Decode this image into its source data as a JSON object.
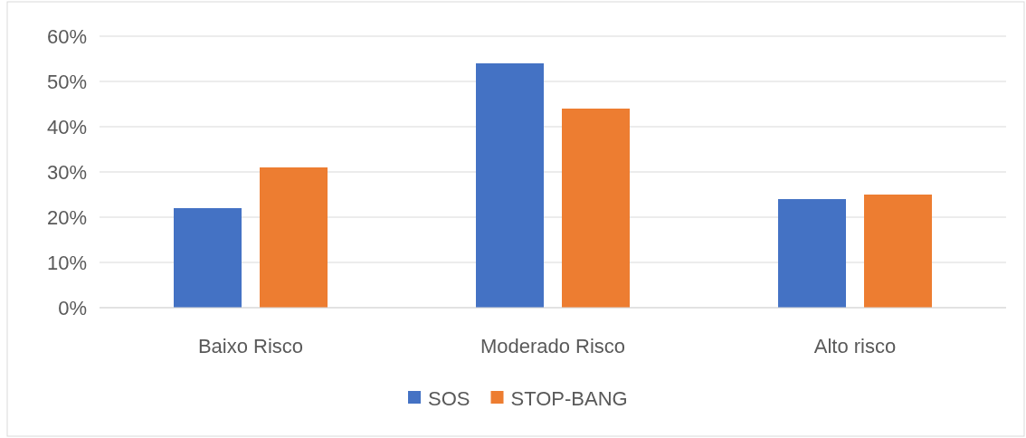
{
  "chart_data": {
    "type": "bar",
    "categories": [
      "Baixo Risco",
      "Moderado Risco",
      "Alto risco"
    ],
    "series": [
      {
        "name": "SOS",
        "color": "#4472c4",
        "values": [
          22,
          54,
          24
        ]
      },
      {
        "name": "STOP-BANG",
        "color": "#ed7d31",
        "values": [
          31,
          44,
          25
        ]
      }
    ],
    "ylim": [
      0,
      60
    ],
    "yticks": [
      {
        "value": 0,
        "label": "0%"
      },
      {
        "value": 10,
        "label": "10%"
      },
      {
        "value": 20,
        "label": "20%"
      },
      {
        "value": 30,
        "label": "30%"
      },
      {
        "value": 40,
        "label": "40%"
      },
      {
        "value": 50,
        "label": "50%"
      },
      {
        "value": 60,
        "label": "60%"
      }
    ],
    "grid": "y",
    "legend": "bottom"
  }
}
